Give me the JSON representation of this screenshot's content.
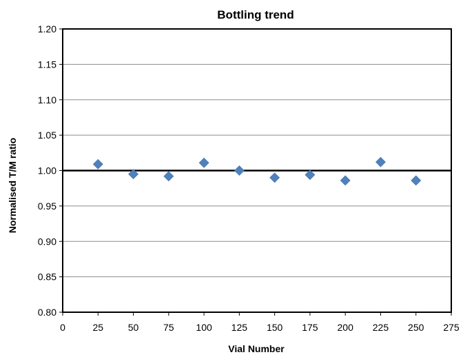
{
  "chart_data": {
    "type": "scatter",
    "title": "Bottling trend",
    "xlabel": "Vial Number",
    "ylabel": "Normalised T/M ratio",
    "xlim": [
      0,
      275
    ],
    "ylim": [
      0.8,
      1.2
    ],
    "x_ticks": [
      0,
      25,
      50,
      75,
      100,
      125,
      150,
      175,
      200,
      225,
      250,
      275
    ],
    "y_ticks": [
      "0.80",
      "0.85",
      "0.90",
      "0.95",
      "1.00",
      "1.05",
      "1.10",
      "1.15",
      "1.20"
    ],
    "y_tick_values": [
      0.8,
      0.85,
      0.9,
      0.95,
      1.0,
      1.05,
      1.1,
      1.15,
      1.2
    ],
    "reference_line": 1.0,
    "grid": true,
    "marker": "diamond",
    "marker_color": "#4f81bd",
    "series": [
      {
        "x": [
          25,
          50,
          75,
          100,
          125,
          150,
          175,
          200,
          225,
          250
        ],
        "y": [
          1.009,
          0.995,
          0.992,
          1.011,
          1.0,
          0.99,
          0.994,
          0.986,
          1.012,
          0.986
        ]
      }
    ]
  }
}
